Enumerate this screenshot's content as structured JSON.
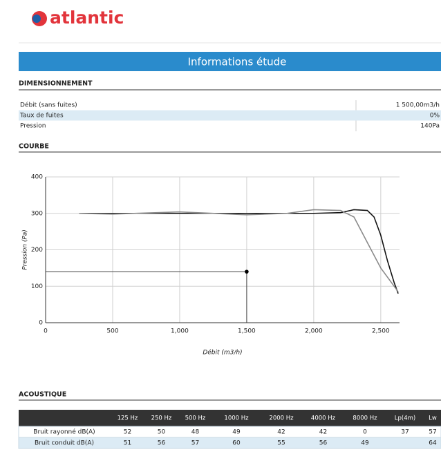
{
  "header": {
    "logo": "atlantic",
    "banner": "Informations étude"
  },
  "dimensionnement": {
    "title": "DIMENSIONNEMENT",
    "rows": [
      [
        "Débit (sans fuites)",
        "1 500,00m3/h"
      ],
      [
        "Taux de fuites",
        "0%"
      ],
      [
        "Pression",
        "140Pa"
      ]
    ]
  },
  "courbe": {
    "title": "COURBE"
  },
  "chart_data": {
    "type": "line",
    "x_label": "Débit (m3/h)",
    "y_label": "Pression (Pa)",
    "xlim": [
      0,
      2640
    ],
    "ylim": [
      0,
      400
    ],
    "xticks": [
      0,
      500,
      {
        "value": 1000,
        "label": "1,000"
      },
      {
        "value": 1500,
        "label": "1,500"
      },
      {
        "value": 2000,
        "label": "2,000"
      },
      {
        "value": 2500,
        "label": "2,500"
      }
    ],
    "yticks": [
      0,
      100,
      200,
      300,
      400
    ],
    "grid": true,
    "series": [
      {
        "color": "#111111",
        "x": [
          250,
          500,
          1000,
          1500,
          2000,
          2200,
          2300,
          2400,
          2450,
          2500,
          2550,
          2600,
          2630
        ],
        "values": [
          300,
          300,
          300,
          300,
          300,
          302,
          310,
          308,
          290,
          240,
          170,
          110,
          80
        ]
      },
      {
        "color": "#8a8a8a",
        "x": [
          250,
          500,
          1000,
          1500,
          1800,
          2000,
          2200,
          2300,
          2400,
          2500,
          2600,
          2630
        ],
        "values": [
          300,
          298,
          304,
          296,
          300,
          310,
          308,
          290,
          220,
          150,
          100,
          85
        ]
      }
    ],
    "point": {
      "x": 1500,
      "y": 140
    }
  },
  "acoustique": {
    "title": "ACOUSTIQUE",
    "columns": [
      "125 Hz",
      "250 Hz",
      "500 Hz",
      "1000 Hz",
      "2000 Hz",
      "4000 Hz",
      "8000 Hz",
      "Lp(4m)",
      "Lw"
    ],
    "rows": [
      {
        "label": "Bruit rayonné dB(A)",
        "values": [
          "52",
          "50",
          "48",
          "49",
          "42",
          "42",
          "0",
          "37",
          "57"
        ]
      },
      {
        "label": "Bruit conduit dB(A)",
        "values": [
          "51",
          "56",
          "57",
          "60",
          "55",
          "56",
          "49",
          "",
          "64"
        ]
      }
    ]
  }
}
